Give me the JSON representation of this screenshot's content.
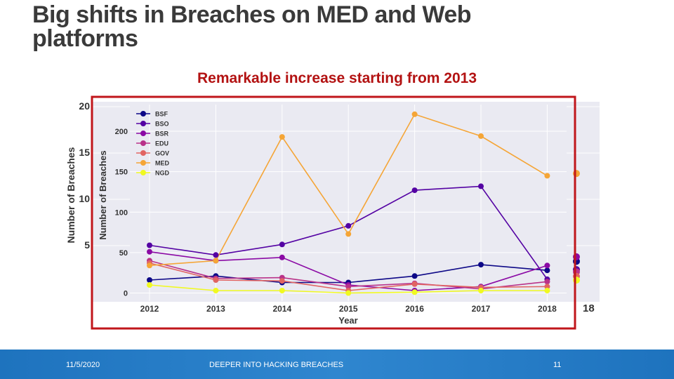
{
  "slide": {
    "title": "Big shifts in Breaches on MED and Web platforms",
    "subtitle": "Remarkable increase starting from 2013"
  },
  "footer": {
    "date": "11/5/2020",
    "center": "DEEPER INTO HACKING BREACHES",
    "page": "11"
  },
  "colors": {
    "subtitle": "#b31212",
    "highlight_box": "#c0161b",
    "plot_bg": "#eaeaf2",
    "footer": "#1e73be"
  },
  "chart_data": [
    {
      "type": "line",
      "title": "",
      "xlabel": "Year",
      "ylabel": "Number of Breaches",
      "categories": [
        "2012",
        "2013",
        "2014",
        "2015",
        "2016",
        "2017",
        "2018"
      ],
      "ylim": [
        -10,
        233
      ],
      "yticks": [
        0,
        50,
        100,
        150,
        200
      ],
      "grid": true,
      "legend_position": "top-left",
      "series": [
        {
          "name": "BSF",
          "color": "#0d0887",
          "values": [
            16,
            21,
            13,
            13,
            21,
            35,
            28
          ]
        },
        {
          "name": "BSO",
          "color": "#5402a3",
          "values": [
            59,
            47,
            60,
            83,
            127,
            132,
            17
          ]
        },
        {
          "name": "BSR",
          "color": "#8b0aa5",
          "values": [
            51,
            40,
            44,
            10,
            3,
            8,
            34
          ]
        },
        {
          "name": "EDU",
          "color": "#b93289",
          "values": [
            40,
            18,
            19,
            8,
            12,
            5,
            14
          ]
        },
        {
          "name": "GOV",
          "color": "#e16462",
          "values": [
            37,
            16,
            15,
            3,
            11,
            7,
            8
          ]
        },
        {
          "name": "MED",
          "color": "#f5a536",
          "values": [
            34,
            40,
            193,
            73,
            221,
            194,
            145
          ]
        },
        {
          "name": "NGD",
          "color": "#f0f921",
          "values": [
            10,
            3,
            3,
            0,
            1,
            3,
            3
          ]
        }
      ]
    },
    {
      "type": "line",
      "ylabel": "Number of Breaches",
      "yticks_visible": [
        "20",
        "15",
        "10",
        "5"
      ],
      "xtick_visible": "18"
    }
  ]
}
